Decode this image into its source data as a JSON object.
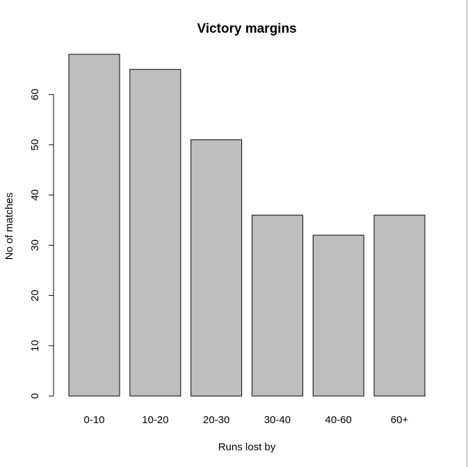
{
  "chart_data": {
    "type": "bar",
    "title": "Victory margins",
    "xlabel": "Runs lost by",
    "ylabel": "No of matches",
    "categories": [
      "0-10",
      "10-20",
      "20-30",
      "30-40",
      "40-60",
      "60+"
    ],
    "values": [
      68,
      65,
      51,
      36,
      32,
      36
    ],
    "ylim": [
      0,
      68
    ],
    "yticks": [
      0,
      10,
      20,
      30,
      40,
      50,
      60
    ],
    "bar_color": "#bebebe",
    "bar_border_color": "#000000",
    "grid": false,
    "legend": "none"
  }
}
